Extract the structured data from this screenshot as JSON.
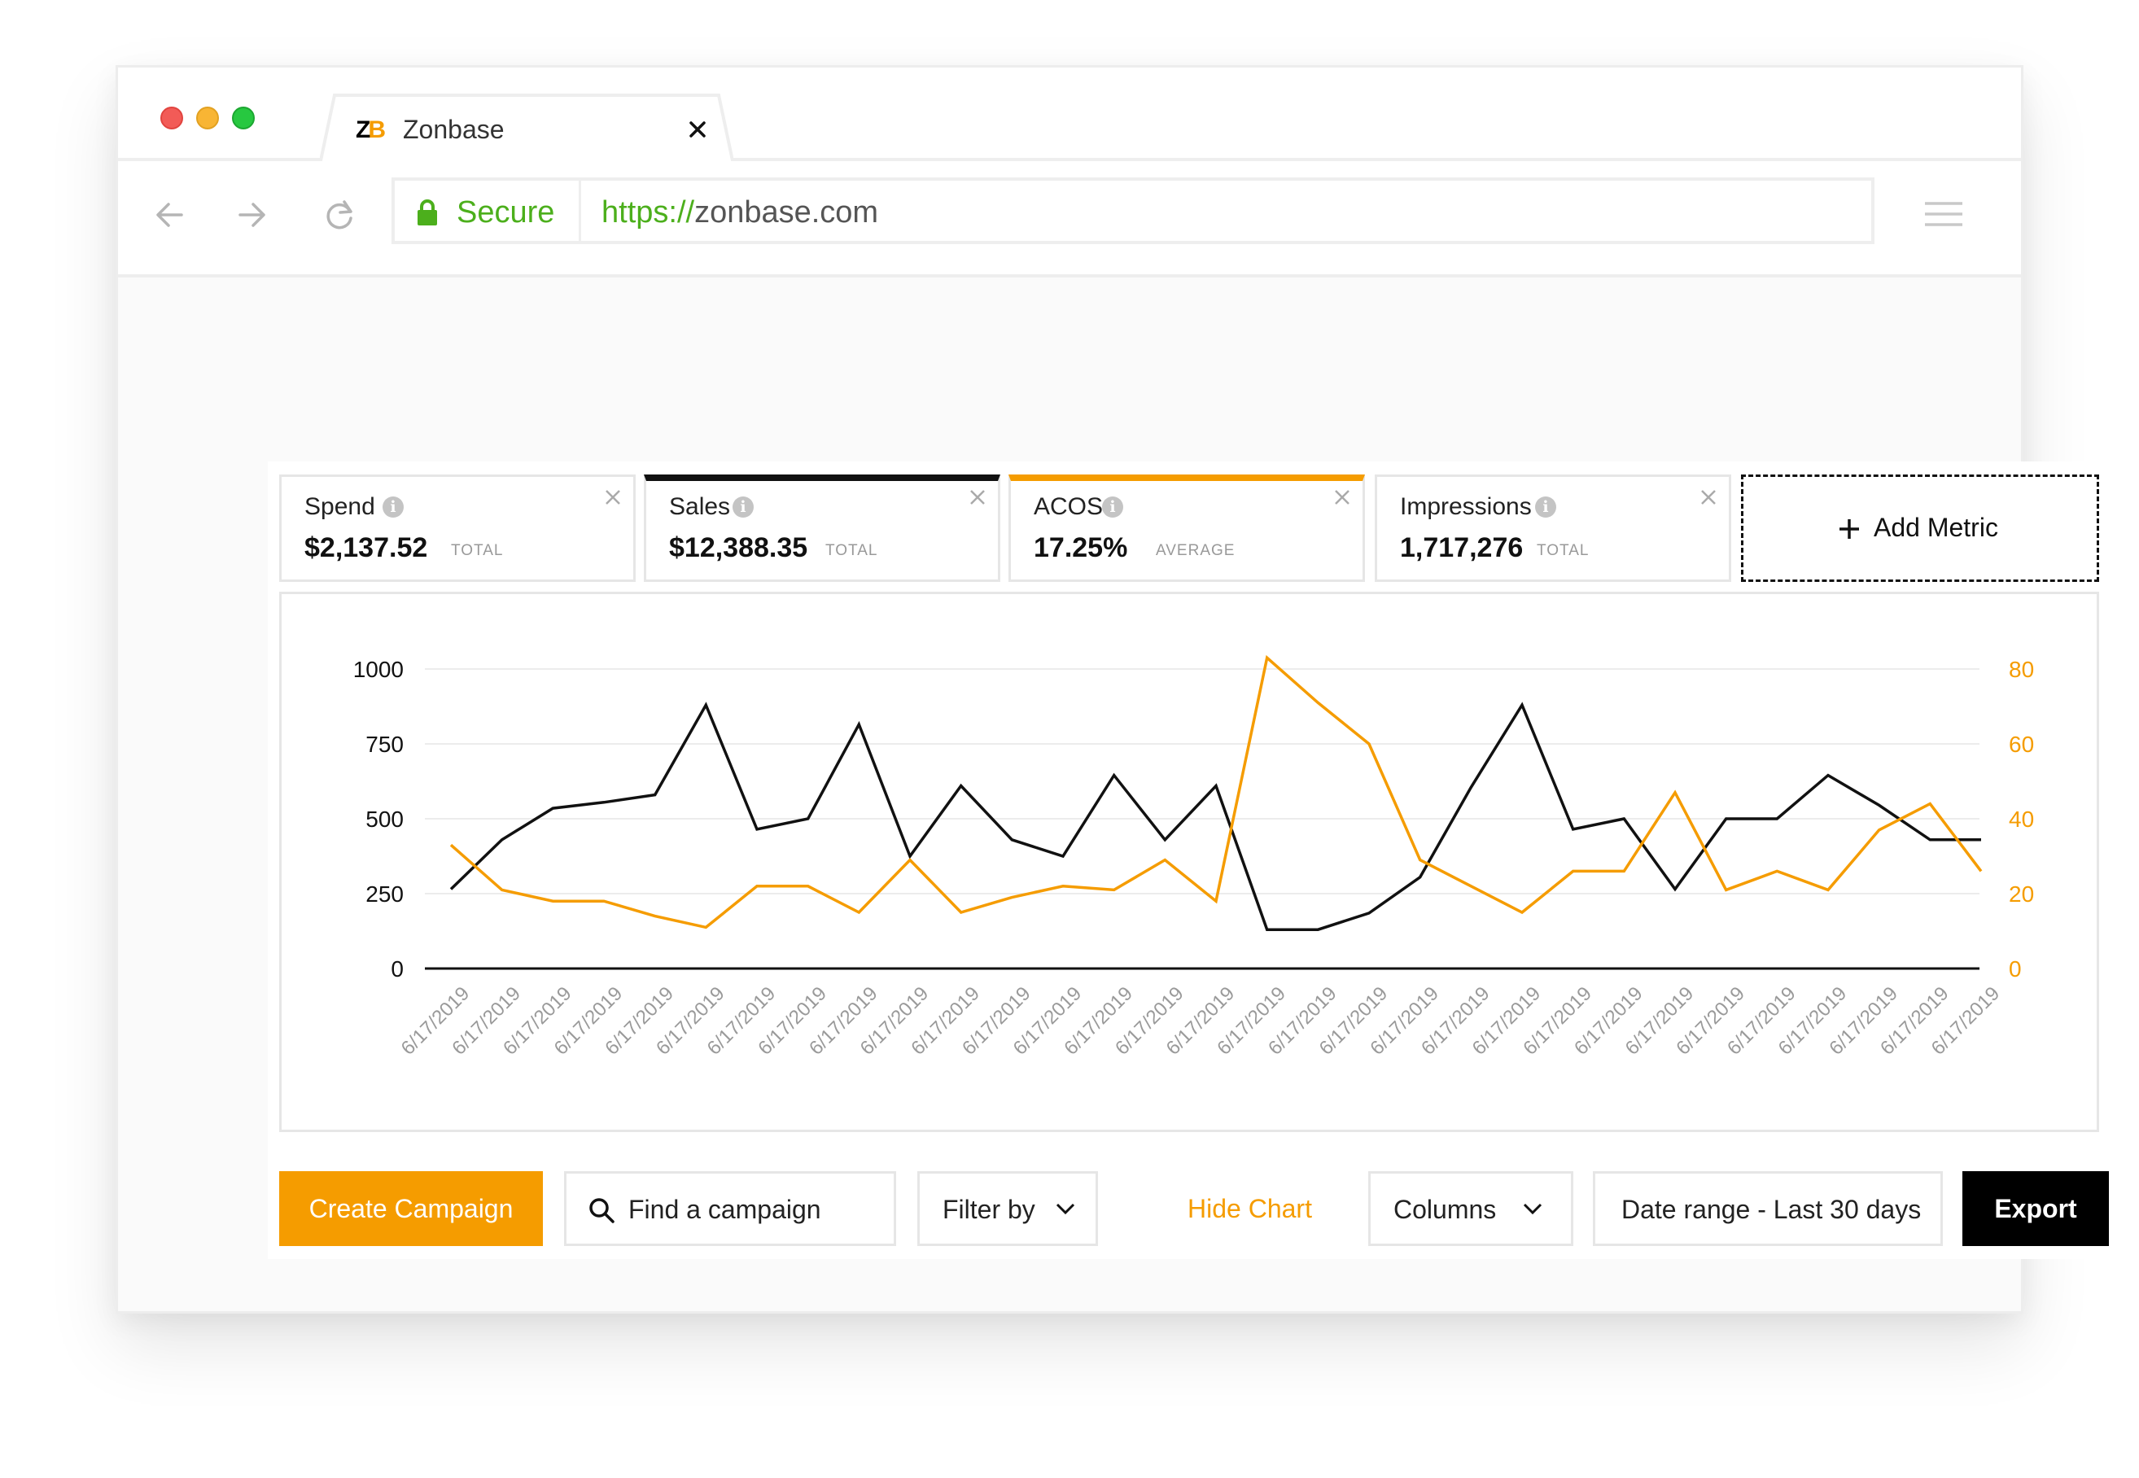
{
  "browser": {
    "tab_logo_z": "Z",
    "tab_logo_b": "B",
    "tab_title": "Zonbase",
    "secure_label": "Secure",
    "url_scheme": "https://",
    "url_host": "zonbase.com"
  },
  "metrics": [
    {
      "label": "Spend",
      "value": "$2,137.52",
      "unit": "TOTAL"
    },
    {
      "label": "Sales",
      "value": "$12,388.35",
      "unit": "TOTAL"
    },
    {
      "label": "ACOS",
      "value": "17.25%",
      "unit": "AVERAGE"
    },
    {
      "label": "Impressions",
      "value": "1,717,276",
      "unit": "TOTAL"
    }
  ],
  "add_metric_label": "Add Metric",
  "colors": {
    "accent": "#f59c00",
    "dark": "#111111",
    "secure": "#4caf1c"
  },
  "chart_data": {
    "type": "line",
    "x": [
      "6/17/2019",
      "6/17/2019",
      "6/17/2019",
      "6/17/2019",
      "6/17/2019",
      "6/17/2019",
      "6/17/2019",
      "6/17/2019",
      "6/17/2019",
      "6/17/2019",
      "6/17/2019",
      "6/17/2019",
      "6/17/2019",
      "6/17/2019",
      "6/17/2019",
      "6/17/2019",
      "6/17/2019",
      "6/17/2019",
      "6/17/2019",
      "6/17/2019",
      "6/17/2019",
      "6/17/2019",
      "6/17/2019",
      "6/17/2019",
      "6/17/2019",
      "6/17/2019",
      "6/17/2019",
      "6/17/2019",
      "6/17/2019",
      "6/17/2019",
      "6/17/2019"
    ],
    "y_left_ticks": [
      "1000",
      "750",
      "500",
      "250",
      "0"
    ],
    "y_right_ticks": [
      "80",
      "60",
      "40",
      "20",
      "0"
    ],
    "y_left_range": [
      0,
      1000
    ],
    "y_right_range": [
      0,
      80
    ],
    "grid": true,
    "series": [
      {
        "color": "#111111",
        "axis": "left",
        "values": [
          265,
          430,
          535,
          555,
          580,
          880,
          465,
          500,
          815,
          375,
          610,
          430,
          375,
          645,
          430,
          610,
          130,
          130,
          185,
          305,
          605,
          880,
          465,
          500,
          265,
          500,
          500,
          645,
          545,
          430,
          430
        ]
      },
      {
        "color": "#f59c00",
        "axis": "right",
        "values": [
          33,
          21,
          18,
          18,
          14,
          11,
          22,
          22,
          15,
          29,
          15,
          19,
          22,
          21,
          29,
          18,
          83,
          71,
          60,
          29,
          22,
          15,
          26,
          26,
          47,
          21,
          26,
          21,
          37,
          44,
          26
        ]
      }
    ]
  },
  "toolbar": {
    "create_campaign": "Create Campaign",
    "search_placeholder": "Find a campaign",
    "filter_by": "Filter by",
    "hide_chart": "Hide Chart",
    "columns": "Columns",
    "date_range": "Date range - Last 30 days",
    "export": "Export"
  }
}
